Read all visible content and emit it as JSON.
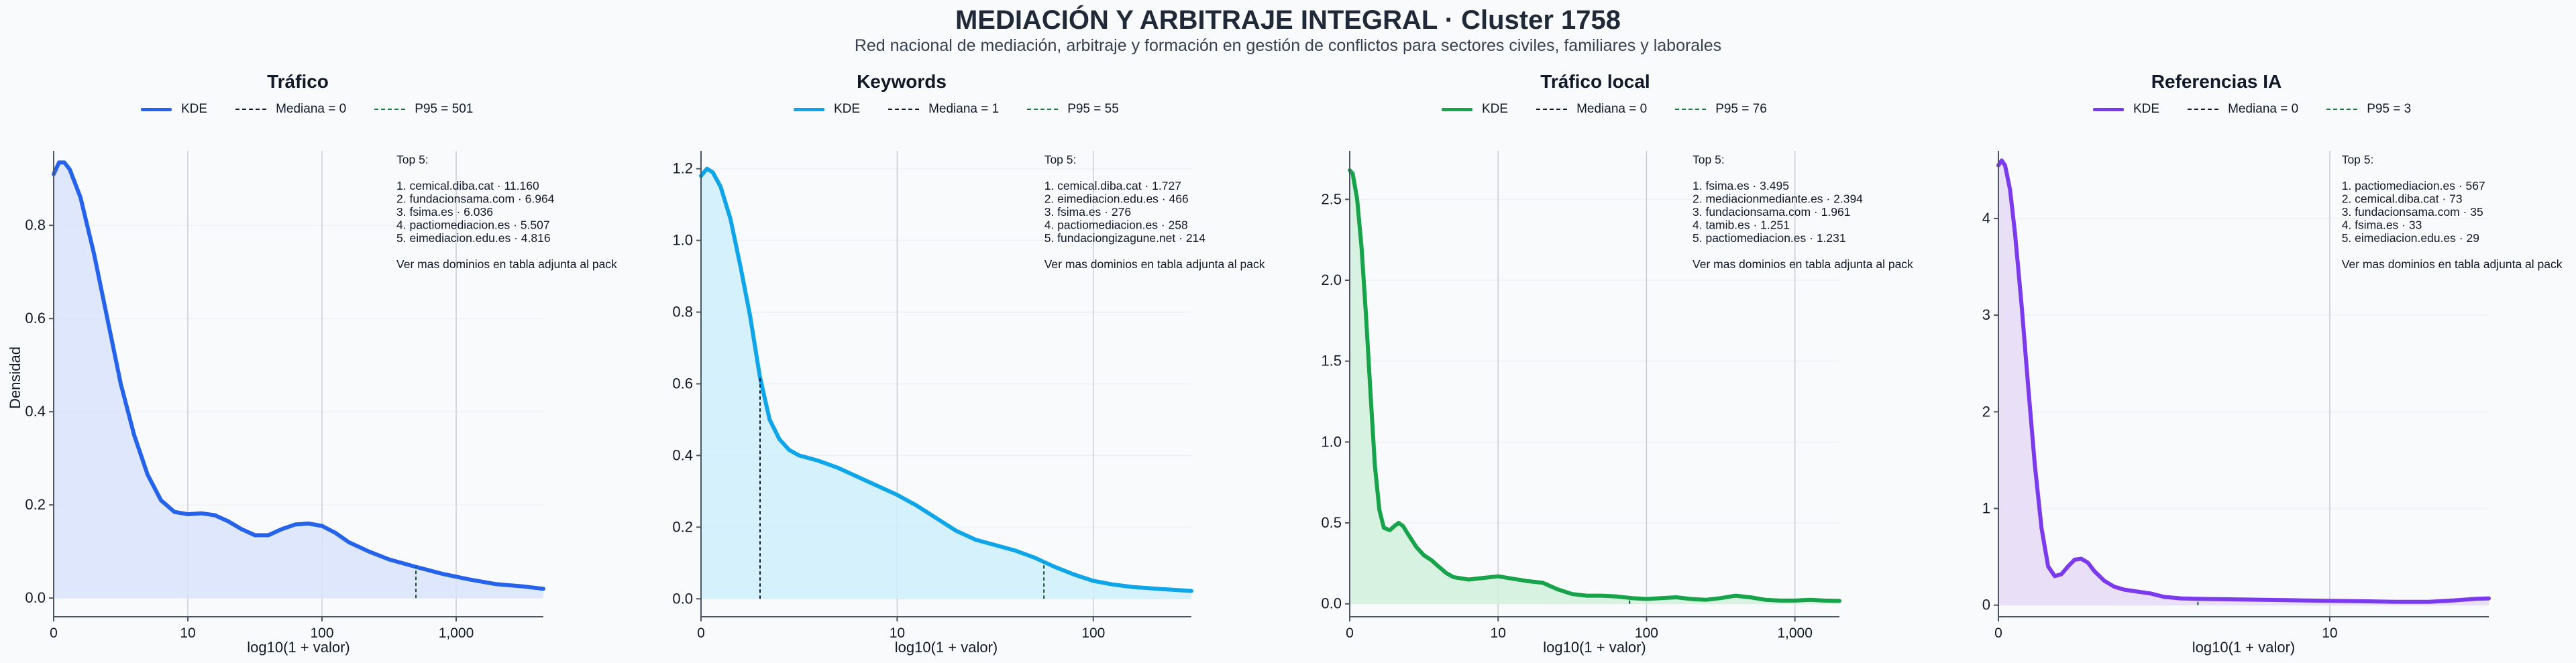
{
  "header": {
    "title": "MEDIACIÓN Y ARBITRAJE INTEGRAL · Cluster 1758",
    "subtitle": "Red nacional de mediación, arbitraje y formación en gestión de conflictos para sectores civiles, familiares y laborales"
  },
  "ylabel": "Densidad",
  "chart_data": [
    {
      "type": "area",
      "title": "Tráfico",
      "color": "#2563eb",
      "fill": "#dbe3fb",
      "xlabel": "log10(1 + valor)",
      "ylabel": "Densidad",
      "x_scale": "log10(1 + x)",
      "xlim": [
        0,
        3.65
      ],
      "ylim": [
        -0.04,
        0.96
      ],
      "xticks": [
        {
          "v": 0,
          "label": "0"
        },
        {
          "v": 1,
          "label": "10"
        },
        {
          "v": 2,
          "label": "100"
        },
        {
          "v": 3,
          "label": "1,000"
        }
      ],
      "yticks": [
        {
          "v": 0,
          "label": "0.0"
        },
        {
          "v": 0.2,
          "label": "0.2"
        },
        {
          "v": 0.4,
          "label": "0.4"
        },
        {
          "v": 0.6,
          "label": "0.6"
        },
        {
          "v": 0.8,
          "label": "0.8"
        }
      ],
      "series": [
        {
          "name": "KDE",
          "points": [
            [
              0,
              0.91
            ],
            [
              0.04,
              0.935
            ],
            [
              0.08,
              0.935
            ],
            [
              0.12,
              0.92
            ],
            [
              0.2,
              0.86
            ],
            [
              0.3,
              0.74
            ],
            [
              0.4,
              0.6
            ],
            [
              0.5,
              0.46
            ],
            [
              0.6,
              0.35
            ],
            [
              0.7,
              0.265
            ],
            [
              0.8,
              0.21
            ],
            [
              0.9,
              0.185
            ],
            [
              1.0,
              0.18
            ],
            [
              1.1,
              0.182
            ],
            [
              1.2,
              0.178
            ],
            [
              1.3,
              0.165
            ],
            [
              1.4,
              0.148
            ],
            [
              1.5,
              0.135
            ],
            [
              1.6,
              0.135
            ],
            [
              1.7,
              0.148
            ],
            [
              1.8,
              0.158
            ],
            [
              1.9,
              0.16
            ],
            [
              2.0,
              0.155
            ],
            [
              2.1,
              0.14
            ],
            [
              2.2,
              0.12
            ],
            [
              2.35,
              0.1
            ],
            [
              2.5,
              0.083
            ],
            [
              2.7,
              0.067
            ],
            [
              2.9,
              0.052
            ],
            [
              3.1,
              0.04
            ],
            [
              3.3,
              0.03
            ],
            [
              3.5,
              0.025
            ],
            [
              3.65,
              0.02
            ]
          ]
        }
      ],
      "legend": [
        {
          "name": "KDE"
        },
        {
          "name": "Mediana = 0",
          "value": 0
        },
        {
          "name": "P95 = 501",
          "value": 501
        }
      ],
      "median_x": 0,
      "p95_x": 2.7,
      "annotation": [
        "Top 5:",
        "",
        "1. cemical.diba.cat · 11.160",
        "2. fundacionsama.com · 6.964",
        "3. fsima.es · 6.036",
        "4. pactiomediacion.es · 5.507",
        "5. eimediacion.edu.es · 4.816",
        "",
        "Ver mas dominios en tabla adjunta al pack"
      ]
    },
    {
      "type": "area",
      "title": "Keywords",
      "color": "#0ea5e9",
      "fill": "#cfeefb",
      "xlabel": "log10(1 + valor)",
      "x_scale": "log10(1 + x)",
      "xlim": [
        0,
        2.5
      ],
      "ylim": [
        -0.05,
        1.25
      ],
      "xticks": [
        {
          "v": 0,
          "label": "0"
        },
        {
          "v": 1,
          "label": "10"
        },
        {
          "v": 2,
          "label": "100"
        }
      ],
      "yticks": [
        {
          "v": 0,
          "label": "0.0"
        },
        {
          "v": 0.2,
          "label": "0.2"
        },
        {
          "v": 0.4,
          "label": "0.4"
        },
        {
          "v": 0.6,
          "label": "0.6"
        },
        {
          "v": 0.8,
          "label": "0.8"
        },
        {
          "v": 1.0,
          "label": "1.0"
        },
        {
          "v": 1.2,
          "label": "1.2"
        }
      ],
      "series": [
        {
          "name": "KDE",
          "points": [
            [
              0,
              1.18
            ],
            [
              0.03,
              1.2
            ],
            [
              0.06,
              1.19
            ],
            [
              0.1,
              1.15
            ],
            [
              0.15,
              1.06
            ],
            [
              0.2,
              0.93
            ],
            [
              0.25,
              0.79
            ],
            [
              0.3,
              0.62
            ],
            [
              0.35,
              0.5
            ],
            [
              0.4,
              0.445
            ],
            [
              0.45,
              0.415
            ],
            [
              0.5,
              0.4
            ],
            [
              0.6,
              0.385
            ],
            [
              0.7,
              0.365
            ],
            [
              0.8,
              0.34
            ],
            [
              0.9,
              0.315
            ],
            [
              1.0,
              0.29
            ],
            [
              1.1,
              0.26
            ],
            [
              1.2,
              0.225
            ],
            [
              1.3,
              0.19
            ],
            [
              1.4,
              0.165
            ],
            [
              1.5,
              0.15
            ],
            [
              1.6,
              0.135
            ],
            [
              1.7,
              0.115
            ],
            [
              1.8,
              0.09
            ],
            [
              1.9,
              0.068
            ],
            [
              2.0,
              0.05
            ],
            [
              2.1,
              0.04
            ],
            [
              2.2,
              0.033
            ],
            [
              2.35,
              0.027
            ],
            [
              2.5,
              0.022
            ]
          ]
        }
      ],
      "legend": [
        {
          "name": "KDE"
        },
        {
          "name": "Mediana = 1",
          "value": 1
        },
        {
          "name": "P95 = 55",
          "value": 55
        }
      ],
      "median_x": 0.301,
      "p95_x": 1.748,
      "annotation": [
        "Top 5:",
        "",
        "1. cemical.diba.cat · 1.727",
        "2. eimediacion.edu.es · 466",
        "3. fsima.es · 276",
        "4. pactiomediacion.es · 258",
        "5. fundaciongizagune.net · 214",
        "",
        "Ver mas dominios en tabla adjunta al pack"
      ]
    },
    {
      "type": "area",
      "title": "Tráfico local",
      "color": "#16a34a",
      "fill": "#d2f0dc",
      "xlabel": "log10(1 + valor)",
      "x_scale": "log10(1 + x)",
      "xlim": [
        0,
        3.3
      ],
      "ylim": [
        -0.08,
        2.8
      ],
      "xticks": [
        {
          "v": 0,
          "label": "0"
        },
        {
          "v": 1,
          "label": "10"
        },
        {
          "v": 2,
          "label": "100"
        },
        {
          "v": 3,
          "label": "1,000"
        }
      ],
      "yticks": [
        {
          "v": 0,
          "label": "0.0"
        },
        {
          "v": 0.5,
          "label": "0.5"
        },
        {
          "v": 1.0,
          "label": "1.0"
        },
        {
          "v": 1.5,
          "label": "1.5"
        },
        {
          "v": 2.0,
          "label": "2.0"
        },
        {
          "v": 2.5,
          "label": "2.5"
        }
      ],
      "series": [
        {
          "name": "KDE",
          "points": [
            [
              0,
              2.68
            ],
            [
              0.02,
              2.66
            ],
            [
              0.05,
              2.5
            ],
            [
              0.08,
              2.2
            ],
            [
              0.11,
              1.78
            ],
            [
              0.14,
              1.3
            ],
            [
              0.17,
              0.85
            ],
            [
              0.2,
              0.58
            ],
            [
              0.23,
              0.47
            ],
            [
              0.27,
              0.455
            ],
            [
              0.3,
              0.48
            ],
            [
              0.33,
              0.5
            ],
            [
              0.36,
              0.48
            ],
            [
              0.4,
              0.42
            ],
            [
              0.45,
              0.35
            ],
            [
              0.5,
              0.3
            ],
            [
              0.55,
              0.27
            ],
            [
              0.6,
              0.23
            ],
            [
              0.65,
              0.19
            ],
            [
              0.7,
              0.165
            ],
            [
              0.8,
              0.15
            ],
            [
              0.9,
              0.16
            ],
            [
              1.0,
              0.17
            ],
            [
              1.1,
              0.155
            ],
            [
              1.2,
              0.14
            ],
            [
              1.3,
              0.13
            ],
            [
              1.4,
              0.09
            ],
            [
              1.5,
              0.06
            ],
            [
              1.6,
              0.05
            ],
            [
              1.7,
              0.05
            ],
            [
              1.8,
              0.045
            ],
            [
              1.9,
              0.035
            ],
            [
              2.0,
              0.03
            ],
            [
              2.1,
              0.035
            ],
            [
              2.2,
              0.04
            ],
            [
              2.3,
              0.03
            ],
            [
              2.4,
              0.025
            ],
            [
              2.5,
              0.035
            ],
            [
              2.6,
              0.05
            ],
            [
              2.7,
              0.04
            ],
            [
              2.8,
              0.025
            ],
            [
              2.9,
              0.02
            ],
            [
              3.0,
              0.02
            ],
            [
              3.1,
              0.025
            ],
            [
              3.2,
              0.02
            ],
            [
              3.3,
              0.018
            ]
          ]
        }
      ],
      "legend": [
        {
          "name": "KDE"
        },
        {
          "name": "Mediana = 0",
          "value": 0
        },
        {
          "name": "P95 = 76",
          "value": 76
        }
      ],
      "median_x": 0,
      "p95_x": 1.886,
      "annotation": [
        "Top 5:",
        "",
        "1. fsima.es · 3.495",
        "2. mediacionmediante.es · 2.394",
        "3. fundacionsama.com · 1.961",
        "4. tamib.es · 1.251",
        "5. pactiomediacion.es · 1.231",
        "",
        "Ver mas dominios en tabla adjunta al pack"
      ]
    },
    {
      "type": "area",
      "title": "Referencias IA",
      "color": "#7c3aed",
      "fill": "#e6dbf7",
      "xlabel": "log10(1 + valor)",
      "x_scale": "log10(1 + x)",
      "xlim": [
        0,
        1.48
      ],
      "ylim": [
        -0.12,
        4.7
      ],
      "xticks": [
        {
          "v": 0,
          "label": "0"
        },
        {
          "v": 1,
          "label": "10"
        }
      ],
      "yticks": [
        {
          "v": 0,
          "label": "0"
        },
        {
          "v": 1,
          "label": "1"
        },
        {
          "v": 2,
          "label": "2"
        },
        {
          "v": 3,
          "label": "3"
        },
        {
          "v": 4,
          "label": "4"
        }
      ],
      "series": [
        {
          "name": "KDE",
          "points": [
            [
              0,
              4.55
            ],
            [
              0.01,
              4.6
            ],
            [
              0.02,
              4.55
            ],
            [
              0.035,
              4.3
            ],
            [
              0.05,
              3.85
            ],
            [
              0.07,
              3.1
            ],
            [
              0.09,
              2.25
            ],
            [
              0.11,
              1.45
            ],
            [
              0.13,
              0.8
            ],
            [
              0.15,
              0.4
            ],
            [
              0.17,
              0.3
            ],
            [
              0.19,
              0.32
            ],
            [
              0.21,
              0.4
            ],
            [
              0.23,
              0.47
            ],
            [
              0.25,
              0.48
            ],
            [
              0.27,
              0.44
            ],
            [
              0.29,
              0.35
            ],
            [
              0.32,
              0.25
            ],
            [
              0.35,
              0.19
            ],
            [
              0.38,
              0.16
            ],
            [
              0.42,
              0.14
            ],
            [
              0.46,
              0.12
            ],
            [
              0.5,
              0.085
            ],
            [
              0.55,
              0.07
            ],
            [
              0.6,
              0.065
            ],
            [
              0.7,
              0.06
            ],
            [
              0.8,
              0.055
            ],
            [
              0.9,
              0.05
            ],
            [
              1.0,
              0.045
            ],
            [
              1.1,
              0.04
            ],
            [
              1.2,
              0.035
            ],
            [
              1.3,
              0.035
            ],
            [
              1.38,
              0.05
            ],
            [
              1.44,
              0.065
            ],
            [
              1.48,
              0.07
            ]
          ]
        }
      ],
      "legend": [
        {
          "name": "KDE"
        },
        {
          "name": "Mediana = 0",
          "value": 0
        },
        {
          "name": "P95 = 3",
          "value": 3
        }
      ],
      "median_x": 0,
      "p95_x": 0.602,
      "annotation": [
        "Top 5:",
        "",
        "1. pactiomediacion.es · 567",
        "2. cemical.diba.cat · 73",
        "3. fundacionsama.com · 35",
        "4. fsima.es · 33",
        "5. eimediacion.edu.es · 29",
        "",
        "Ver mas dominios en tabla adjunta al pack"
      ]
    }
  ]
}
